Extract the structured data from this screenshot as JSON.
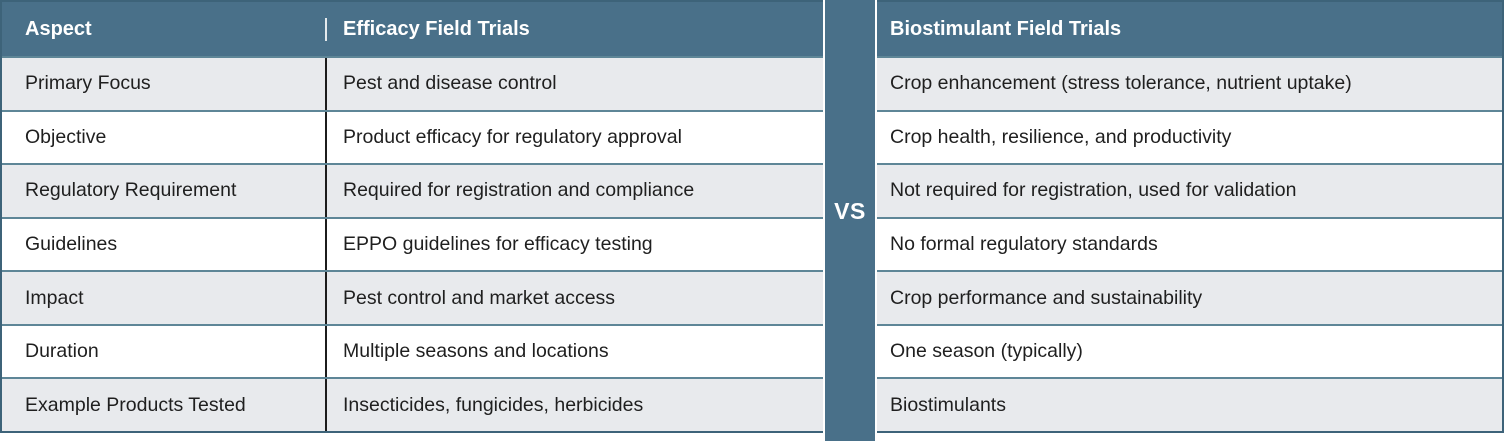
{
  "table": {
    "left_headers": {
      "aspect": "Aspect",
      "efficacy": "Efficacy Field Trials"
    },
    "right_header": "Biostimulant Field Trials",
    "divider_label": "VS",
    "rows": [
      {
        "aspect": "Primary Focus",
        "efficacy": "Pest and disease control",
        "biostimulant": "Crop enhancement (stress tolerance, nutrient uptake)"
      },
      {
        "aspect": "Objective",
        "efficacy": "Product efficacy for regulatory approval",
        "biostimulant": "Crop health, resilience, and productivity"
      },
      {
        "aspect": "Regulatory Requirement",
        "efficacy": "Required for registration and compliance",
        "biostimulant": "Not required for registration, used for validation"
      },
      {
        "aspect": "Guidelines",
        "efficacy": "EPPO guidelines for efficacy testing",
        "biostimulant": "No formal regulatory standards"
      },
      {
        "aspect": "Impact",
        "efficacy": "Pest control and market access",
        "biostimulant": "Crop performance and sustainability"
      },
      {
        "aspect": "Duration",
        "efficacy": "Multiple seasons and locations",
        "biostimulant": "One season (typically)"
      },
      {
        "aspect": "Example Products Tested",
        "efficacy": "Insecticides, fungicides, herbicides",
        "biostimulant": "Biostimulants"
      }
    ]
  },
  "colors": {
    "header_bg": "#497089",
    "divider_bg": "#497089",
    "row_alt_bg": "#e8eaed",
    "row_bg": "#ffffff",
    "border": "#3d6379",
    "row_separator": "#5e8697",
    "header_text": "#ffffff",
    "body_text": "#1f1f1f"
  }
}
